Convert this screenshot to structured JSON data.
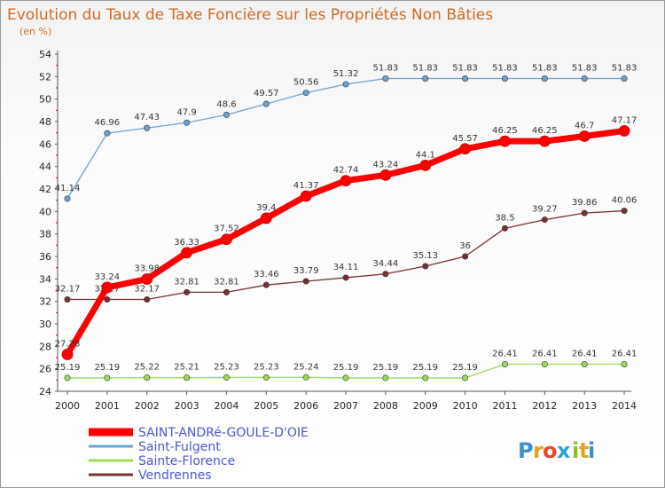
{
  "title": "Evolution du Taux de Taxe Foncière sur les Propriétés Non Bâties",
  "subtitle": "(en %)",
  "logo": {
    "letters": [
      "P",
      "r",
      "o",
      "x",
      "i",
      "t",
      "i"
    ],
    "colors": [
      "#3a8fd1",
      "#e8a020",
      "#e84a20",
      "#2aa0d8",
      "#8cbf26",
      "#e8a020",
      "#3a8fd1"
    ]
  },
  "chart_data": {
    "type": "line",
    "x": [
      "2000",
      "2001",
      "2002",
      "2003",
      "2004",
      "2005",
      "2006",
      "2007",
      "2008",
      "2009",
      "2010",
      "2011",
      "2012",
      "2013",
      "2014"
    ],
    "ylim": [
      24,
      54
    ],
    "yticks": [
      "24",
      "26",
      "28",
      "30",
      "32",
      "34",
      "36",
      "38",
      "40",
      "42",
      "44",
      "46",
      "48",
      "50",
      "52",
      "54"
    ],
    "grid": false,
    "legend_position": "bottom-left",
    "series": [
      {
        "name": "SAINT-ANDRé-GOULE-D'OIE",
        "color": "#ff0000",
        "values": [
          27.28,
          33.24,
          33.98,
          36.33,
          37.52,
          39.4,
          41.37,
          42.74,
          43.24,
          44.1,
          45.57,
          46.25,
          46.25,
          46.7,
          47.17
        ],
        "labels": [
          "27.28",
          "33.24",
          "33.98",
          "36.33",
          "37.52",
          "39.4",
          "41.37",
          "42.74",
          "43.24",
          "44.1",
          "45.57",
          "46.25",
          "46.25",
          "46.7",
          "47.17"
        ]
      },
      {
        "name": "Saint-Fulgent",
        "color": "#6aa3d5",
        "values": [
          41.14,
          46.96,
          47.43,
          47.9,
          48.6,
          49.57,
          50.56,
          51.32,
          51.83,
          51.83,
          51.83,
          51.83,
          51.83,
          51.83,
          51.83
        ],
        "labels": [
          "41.14",
          "46.96",
          "47.43",
          "47.9",
          "48.6",
          "49.57",
          "50.56",
          "51.32",
          "51.83",
          "51.83",
          "51.83",
          "51.83",
          "51.83",
          "51.83",
          "51.83"
        ]
      },
      {
        "name": "Sainte-Florence",
        "color": "#99dd55",
        "values": [
          25.19,
          25.19,
          25.22,
          25.21,
          25.23,
          25.23,
          25.24,
          25.19,
          25.19,
          25.19,
          25.19,
          26.41,
          26.41,
          26.41,
          26.41
        ],
        "labels": [
          "25.19",
          "25.19",
          "25.22",
          "25.21",
          "25.23",
          "25.23",
          "25.24",
          "25.19",
          "25.19",
          "25.19",
          "25.19",
          "26.41",
          "26.41",
          "26.41",
          "26.41"
        ]
      },
      {
        "name": "Vendrennes",
        "color": "#7a2f2f",
        "values": [
          32.17,
          32.17,
          32.17,
          32.81,
          32.81,
          33.46,
          33.79,
          34.11,
          34.44,
          35.13,
          36,
          38.5,
          39.27,
          39.86,
          40.06
        ],
        "labels": [
          "32.17",
          "32.17",
          "32.17",
          "32.81",
          "32.81",
          "33.46",
          "33.79",
          "34.11",
          "34.44",
          "35.13",
          "36",
          "38.5",
          "39.27",
          "39.86",
          "40.06"
        ]
      }
    ]
  }
}
